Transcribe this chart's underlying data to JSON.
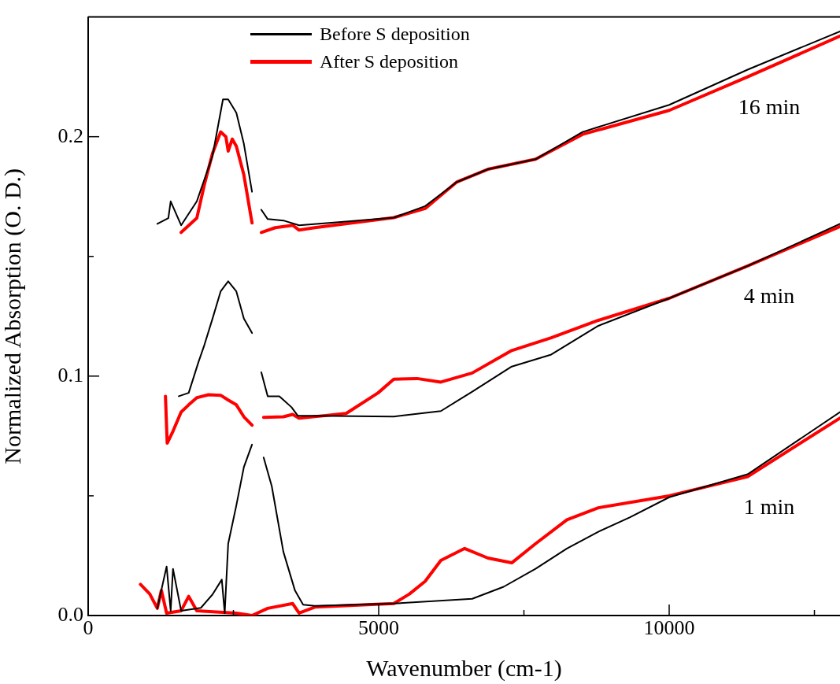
{
  "chart_data": {
    "type": "line",
    "xlabel": "Wavenumber (cm-1)",
    "ylabel": "Normalized Absorption (O. D.)",
    "xlim": [
      0,
      12940
    ],
    "ylim": [
      0,
      0.25
    ],
    "xticks": [
      0,
      {
        "value": 2500,
        "label": null
      },
      5000,
      {
        "value": 7500,
        "label": null
      },
      10000,
      {
        "value": 12500,
        "label": null
      }
    ],
    "yticks": [
      {
        "value": 0,
        "label": "0.0"
      },
      {
        "value": 0.05,
        "label": null
      },
      {
        "value": 0.1,
        "label": "0.1"
      },
      {
        "value": 0.15,
        "label": null
      },
      {
        "value": 0.2,
        "label": "0.2"
      }
    ],
    "grid": false,
    "legend": "top left",
    "marker": "none",
    "line_style": "solid",
    "annotations": [
      "16 min",
      "4 min",
      "1 min"
    ],
    "series": [
      {
        "name": "Before S deposition",
        "color": "#000000",
        "x": [
          1190,
          1380,
          1420,
          1600,
          1870,
          2140,
          2320,
          2410,
          2550,
          2680,
          2820,
          2900,
          2980,
          3090,
          3360,
          3630,
          4310,
          5260,
          5800,
          6340,
          6880,
          7700,
          8510,
          10000,
          11350,
          12940
        ],
        "values": [
          0.1636,
          0.166,
          0.173,
          0.163,
          0.173,
          0.192,
          0.2156,
          0.2156,
          0.21,
          0.197,
          0.177,
          null,
          0.1695,
          0.1656,
          0.165,
          0.163,
          0.1643,
          0.1662,
          0.171,
          0.181,
          0.1864,
          0.1906,
          0.202,
          0.2133,
          0.228,
          0.244
        ]
      },
      {
        "name": "After S deposition",
        "color": "#ff0000",
        "x": [
          1600,
          1870,
          2000,
          2140,
          2280,
          2370,
          2410,
          2480,
          2550,
          2680,
          2820,
          2900,
          2980,
          3220,
          3520,
          3630,
          3900,
          5260,
          5800,
          6340,
          6880,
          7700,
          8510,
          10000,
          11350,
          12940
        ],
        "values": [
          0.16,
          0.166,
          0.18,
          0.193,
          0.202,
          0.2,
          0.194,
          0.199,
          0.196,
          0.184,
          0.164,
          null,
          0.16,
          0.162,
          0.163,
          0.161,
          0.162,
          0.1662,
          0.17,
          0.181,
          0.1864,
          0.1906,
          0.201,
          0.211,
          0.225,
          0.242
        ]
      },
      {
        "color": "#000000",
        "x": [
          1560,
          1730,
          1900,
          2000,
          2140,
          2280,
          2410,
          2550,
          2680,
          2820,
          2900,
          2980,
          3090,
          3290,
          3500,
          3610,
          3900,
          5260,
          6070,
          6610,
          7290,
          7970,
          8780,
          10000,
          11350,
          12940
        ],
        "values": [
          0.0916,
          0.093,
          0.106,
          0.113,
          0.124,
          0.1354,
          0.1396,
          0.1354,
          0.124,
          0.118,
          null,
          0.1016,
          0.0916,
          0.0916,
          0.087,
          0.0834,
          0.0834,
          0.0831,
          0.0854,
          0.0935,
          0.104,
          0.109,
          0.121,
          0.1325,
          0.146,
          0.1636
        ]
      },
      {
        "color": "#ff0000",
        "x": [
          1330,
          1360,
          1460,
          1600,
          1730,
          1870,
          2070,
          2280,
          2410,
          2550,
          2680,
          2820,
          2900,
          3020,
          3360,
          3520,
          3630,
          4440,
          4990,
          5260,
          5660,
          6070,
          6610,
          7290,
          7970,
          8780,
          10000,
          11350,
          12940
        ],
        "values": [
          0.0916,
          0.072,
          0.077,
          0.085,
          0.088,
          0.091,
          0.0922,
          0.092,
          0.09,
          0.088,
          0.083,
          0.0795,
          null,
          0.0828,
          0.083,
          0.084,
          0.0824,
          0.0844,
          0.093,
          0.0987,
          0.099,
          0.0975,
          0.1013,
          0.1107,
          0.116,
          0.1233,
          0.1325,
          0.146,
          0.1625
        ]
      },
      {
        "color": "#000000",
        "x": [
          1190,
          1350,
          1420,
          1460,
          1600,
          1940,
          2140,
          2300,
          2350,
          2410,
          2550,
          2680,
          2820,
          2900,
          3020,
          3160,
          3360,
          3560,
          3700,
          3900,
          5260,
          6610,
          7150,
          7700,
          8240,
          8780,
          9320,
          10000,
          11350,
          12940
        ],
        "values": [
          0.003,
          0.0205,
          0.002,
          0.0195,
          0.002,
          0.0032,
          0.0088,
          0.015,
          0.001,
          0.03,
          0.046,
          0.062,
          0.0714,
          null,
          0.066,
          0.054,
          0.0266,
          0.0104,
          0.0045,
          0.004,
          0.005,
          0.007,
          0.012,
          0.0195,
          0.028,
          0.035,
          0.041,
          0.0494,
          0.059,
          0.085
        ]
      },
      {
        "color": "#ff0000",
        "x": [
          900,
          1060,
          1190,
          1260,
          1350,
          1600,
          1730,
          1870,
          2550,
          2820,
          3090,
          3520,
          3630,
          3900,
          5260,
          5530,
          5800,
          6070,
          6480,
          6880,
          7290,
          7700,
          8240,
          8780,
          10000,
          11350,
          12940
        ],
        "values": [
          0.013,
          0.009,
          0.003,
          0.0105,
          0.001,
          0.002,
          0.008,
          0.002,
          0.001,
          0,
          0.003,
          0.005,
          0.001,
          0.0035,
          0.005,
          0.009,
          0.0143,
          0.023,
          0.028,
          0.024,
          0.022,
          0.03,
          0.04,
          0.045,
          0.05,
          0.058,
          0.0825
        ]
      }
    ]
  }
}
